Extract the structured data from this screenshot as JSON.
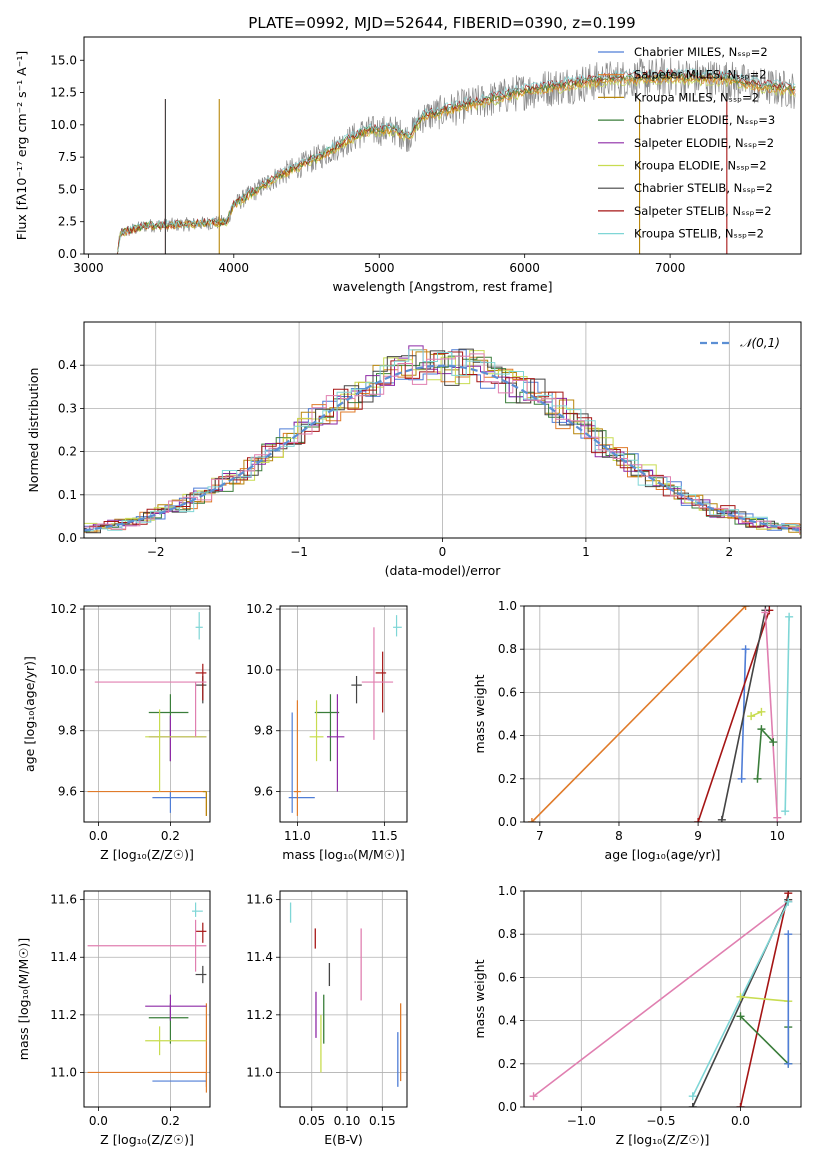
{
  "title": "PLATE=0992, MJD=52644, FIBERID=0390, z=0.199",
  "colors": {
    "chabrier_miles": "#4f7dd6",
    "salpeter_miles": "#e07b2a",
    "kroupa_miles": "#b8860b",
    "chabrier_elodie": "#3a7d3a",
    "salpeter_elodie": "#8e2aa6",
    "kroupa_elodie": "#c8dc50",
    "chabrier_stelib": "#444444",
    "salpeter_stelib": "#a51515",
    "kroupa_stelib": "#7fd6d6",
    "pink": "#e07fb0",
    "normal_curve": "#5b8fd4",
    "grid": "#b0b0b0"
  },
  "chart_data": [
    {
      "id": "spectrum",
      "type": "line",
      "xlabel": "wavelength [Angstrom, rest frame]",
      "ylabel": "Flux [fλ10⁻¹⁷ erg cm⁻² s⁻¹ A⁻¹]",
      "xlim": [
        2970,
        7900
      ],
      "ylim": [
        0,
        16.8
      ],
      "xticks": [
        3000,
        4000,
        5000,
        6000,
        7000
      ],
      "yticks": [
        0.0,
        2.5,
        5.0,
        7.5,
        10.0,
        12.5,
        15.0
      ],
      "envelope": [
        [
          3200,
          0
        ],
        [
          3220,
          1.6
        ],
        [
          3400,
          2.2
        ],
        [
          3700,
          2.3
        ],
        [
          3950,
          2.5
        ],
        [
          4000,
          3.8
        ],
        [
          4300,
          6.0
        ],
        [
          4600,
          7.6
        ],
        [
          4900,
          9.5
        ],
        [
          5100,
          9.6
        ],
        [
          5200,
          9.0
        ],
        [
          5300,
          10.6
        ],
        [
          5600,
          11.5
        ],
        [
          6000,
          12.6
        ],
        [
          6300,
          13.1
        ],
        [
          6600,
          13.5
        ],
        [
          7000,
          13.7
        ],
        [
          7400,
          13.5
        ],
        [
          7600,
          13.0
        ],
        [
          7850,
          12.7
        ]
      ],
      "legend": [
        "Chabrier MILES, Nₛₛₚ=2",
        "Salpeter MILES, Nₛₛₚ=2",
        "Kroupa MILES, Nₛₛₚ=2",
        "Chabrier ELODIE, Nₛₛₚ=3",
        "Salpeter ELODIE, Nₛₛₚ=2",
        "Kroupa ELODIE, Nₛₛₚ=2",
        "Chabrier STELIB, Nₛₛₚ=2",
        "Salpeter STELIB, Nₛₛₚ=2",
        "Kroupa STELIB, Nₛₛₚ=2"
      ],
      "legend_position": "upper right"
    },
    {
      "id": "residuals",
      "type": "histogram",
      "xlabel": "(data-model)/error",
      "ylabel": "Normed distribution",
      "xlim": [
        -2.5,
        2.5
      ],
      "ylim": [
        0,
        0.5
      ],
      "xticks": [
        -2,
        -1,
        0,
        1,
        2
      ],
      "xtick_labels": [
        "−2",
        "−1",
        "0",
        "1",
        "2"
      ],
      "yticks": [
        0.0,
        0.1,
        0.2,
        0.3,
        0.4
      ],
      "legend": [
        "𝒩(0,1)"
      ],
      "legend_position": "upper right",
      "grid": true
    },
    {
      "id": "age_vs_Z",
      "type": "scatter",
      "xlabel": "Z [log₁₀(Z/Z☉)]",
      "ylabel": "age  [log₁₀(age/yr)]",
      "xlim": [
        -0.04,
        0.31
      ],
      "ylim": [
        9.5,
        10.21
      ],
      "xticks": [
        0.0,
        0.2
      ],
      "yticks": [
        9.6,
        9.8,
        10.0,
        10.2
      ],
      "points": [
        {
          "c": "chabrier_miles",
          "x": 0.2,
          "xlo": 0.15,
          "xhi": 0.3,
          "y": 9.58,
          "ylo": 9.53,
          "yhi": 9.6
        },
        {
          "c": "salpeter_miles",
          "x": 0.3,
          "xlo": -0.03,
          "xhi": 0.3,
          "y": 9.6,
          "ylo": 9.52,
          "yhi": 9.6
        },
        {
          "c": "kroupa_miles",
          "x": 0.3,
          "xlo": 0.29,
          "xhi": 0.3,
          "y": 9.6,
          "ylo": 9.52,
          "yhi": 9.6
        },
        {
          "c": "chabrier_elodie",
          "x": 0.2,
          "xlo": 0.14,
          "xhi": 0.25,
          "y": 9.86,
          "ylo": 9.7,
          "yhi": 9.92
        },
        {
          "c": "salpeter_elodie",
          "x": 0.2,
          "xlo": 0.14,
          "xhi": 0.3,
          "y": 9.78,
          "ylo": 9.7,
          "yhi": 9.85
        },
        {
          "c": "kroupa_elodie",
          "x": 0.17,
          "xlo": 0.13,
          "xhi": 0.3,
          "y": 9.78,
          "ylo": 9.6,
          "yhi": 9.87
        },
        {
          "c": "chabrier_stelib",
          "x": 0.29,
          "xlo": 0.27,
          "xhi": 0.3,
          "y": 9.95,
          "ylo": 9.89,
          "yhi": 9.98
        },
        {
          "c": "salpeter_stelib",
          "x": 0.29,
          "xlo": 0.27,
          "xhi": 0.3,
          "y": 9.99,
          "ylo": 9.9,
          "yhi": 10.02
        },
        {
          "c": "pink",
          "x": 0.27,
          "xlo": -0.01,
          "xhi": 0.3,
          "y": 9.96,
          "ylo": 9.78,
          "yhi": 9.96
        },
        {
          "c": "kroupa_stelib",
          "x": 0.28,
          "xlo": 0.27,
          "xhi": 0.29,
          "y": 10.14,
          "ylo": 10.1,
          "yhi": 10.19
        }
      ]
    },
    {
      "id": "age_vs_mass",
      "type": "scatter",
      "xlabel": "mass [log₁₀(M/M☉)]",
      "xlim": [
        10.9,
        11.63
      ],
      "ylim": [
        9.5,
        10.21
      ],
      "xticks": [
        11.0,
        11.5
      ],
      "yticks": [
        9.6,
        9.8,
        10.0,
        10.2
      ],
      "points": [
        {
          "c": "chabrier_miles",
          "x": 10.97,
          "xlo": 10.95,
          "xhi": 11.1,
          "y": 9.58,
          "ylo": 9.53,
          "yhi": 9.86
        },
        {
          "c": "salpeter_miles",
          "x": 11.0,
          "xlo": 10.98,
          "xhi": 11.02,
          "y": 9.6,
          "ylo": 9.52,
          "yhi": 9.9
        },
        {
          "c": "chabrier_elodie",
          "x": 11.19,
          "xlo": 11.1,
          "xhi": 11.24,
          "y": 9.86,
          "ylo": 9.7,
          "yhi": 9.92
        },
        {
          "c": "salpeter_elodie",
          "x": 11.23,
          "xlo": 11.17,
          "xhi": 11.27,
          "y": 9.78,
          "ylo": 9.6,
          "yhi": 9.92
        },
        {
          "c": "kroupa_elodie",
          "x": 11.11,
          "xlo": 11.07,
          "xhi": 11.15,
          "y": 9.78,
          "ylo": 9.7,
          "yhi": 9.9
        },
        {
          "c": "chabrier_stelib",
          "x": 11.34,
          "xlo": 11.31,
          "xhi": 11.37,
          "y": 9.95,
          "ylo": 9.89,
          "yhi": 9.98
        },
        {
          "c": "salpeter_stelib",
          "x": 11.49,
          "xlo": 11.45,
          "xhi": 11.51,
          "y": 9.99,
          "ylo": 9.86,
          "yhi": 10.06
        },
        {
          "c": "pink",
          "x": 11.44,
          "xlo": 11.37,
          "xhi": 11.55,
          "y": 9.96,
          "ylo": 9.77,
          "yhi": 10.14
        },
        {
          "c": "kroupa_stelib",
          "x": 11.57,
          "xlo": 11.55,
          "xhi": 11.6,
          "y": 10.14,
          "ylo": 10.11,
          "yhi": 10.18
        }
      ]
    },
    {
      "id": "weight_vs_age",
      "type": "line",
      "xlabel": "age  [log₁₀(age/yr)]",
      "ylabel": "mass weight",
      "xlim": [
        6.8,
        10.3
      ],
      "ylim": [
        0,
        1
      ],
      "xticks": [
        7,
        8,
        9,
        10
      ],
      "yticks": [
        0.0,
        0.2,
        0.4,
        0.6,
        0.8,
        1.0
      ],
      "series": [
        {
          "c": "salpeter_miles",
          "x": [
            6.9,
            9.6
          ],
          "y": [
            0.0,
            1.0
          ]
        },
        {
          "c": "chabrier_miles",
          "x": [
            9.55,
            9.6
          ],
          "y": [
            0.2,
            0.8
          ]
        },
        {
          "c": "salpeter_stelib",
          "x": [
            9.0,
            9.9
          ],
          "y": [
            0.0,
            0.98
          ]
        },
        {
          "c": "chabrier_stelib",
          "x": [
            9.3,
            9.85
          ],
          "y": [
            0.01,
            0.98
          ]
        },
        {
          "c": "pink",
          "x": [
            9.85,
            10.0
          ],
          "y": [
            0.97,
            0.02
          ]
        },
        {
          "c": "kroupa_elodie",
          "x": [
            9.67,
            9.8
          ],
          "y": [
            0.49,
            0.51
          ]
        },
        {
          "c": "chabrier_elodie",
          "x": [
            9.75,
            9.8,
            9.95
          ],
          "y": [
            0.2,
            0.43,
            0.37
          ]
        },
        {
          "c": "kroupa_stelib",
          "x": [
            10.1,
            10.15
          ],
          "y": [
            0.05,
            0.95
          ]
        }
      ]
    },
    {
      "id": "mass_vs_Z",
      "type": "scatter",
      "xlabel": "Z [log₁₀(Z/Z☉)]",
      "ylabel": "mass [log₁₀(M/M☉)]",
      "xlim": [
        -0.04,
        0.31
      ],
      "ylim": [
        10.88,
        11.63
      ],
      "xticks": [
        0.0,
        0.2
      ],
      "yticks": [
        11.0,
        11.2,
        11.4,
        11.6
      ],
      "points": [
        {
          "c": "chabrier_miles",
          "x": 0.3,
          "xlo": 0.15,
          "xhi": 0.3,
          "y": 10.97,
          "ylo": 10.95,
          "yhi": 11.0
        },
        {
          "c": "salpeter_miles",
          "x": 0.3,
          "xlo": -0.03,
          "xhi": 0.3,
          "y": 11.0,
          "ylo": 10.93,
          "yhi": 11.24
        },
        {
          "c": "chabrier_elodie",
          "x": 0.2,
          "xlo": 0.14,
          "xhi": 0.25,
          "y": 11.19,
          "ylo": 11.1,
          "yhi": 11.24
        },
        {
          "c": "salpeter_elodie",
          "x": 0.2,
          "xlo": 0.13,
          "xhi": 0.3,
          "y": 11.23,
          "ylo": 11.18,
          "yhi": 11.27
        },
        {
          "c": "kroupa_elodie",
          "x": 0.17,
          "xlo": 0.13,
          "xhi": 0.3,
          "y": 11.11,
          "ylo": 11.06,
          "yhi": 11.16
        },
        {
          "c": "chabrier_stelib",
          "x": 0.29,
          "xlo": 0.27,
          "xhi": 0.3,
          "y": 11.34,
          "ylo": 11.31,
          "yhi": 11.37
        },
        {
          "c": "salpeter_stelib",
          "x": 0.29,
          "xlo": 0.27,
          "xhi": 0.3,
          "y": 11.49,
          "ylo": 11.45,
          "yhi": 11.52
        },
        {
          "c": "pink",
          "x": 0.27,
          "xlo": -0.03,
          "xhi": 0.3,
          "y": 11.44,
          "ylo": 11.35,
          "yhi": 11.53
        },
        {
          "c": "kroupa_stelib",
          "x": 0.27,
          "xlo": 0.26,
          "xhi": 0.29,
          "y": 11.56,
          "ylo": 11.54,
          "yhi": 11.59
        }
      ]
    },
    {
      "id": "mass_vs_ebv",
      "type": "scatter",
      "xlabel": "E(B-V)",
      "xlim": [
        0.005,
        0.185
      ],
      "ylim": [
        10.88,
        11.63
      ],
      "xticks": [
        0.05,
        0.1,
        0.15
      ],
      "xtick_labels": [
        "0.05",
        "0.10",
        "0.15"
      ],
      "yticks": [
        11.0,
        11.2,
        11.4,
        11.6
      ],
      "segments": [
        {
          "c": "kroupa_stelib",
          "x": 0.02,
          "ylo": 11.52,
          "yhi": 11.59
        },
        {
          "c": "salpeter_stelib",
          "x": 0.055,
          "ylo": 11.43,
          "yhi": 11.5
        },
        {
          "c": "salpeter_elodie",
          "x": 0.056,
          "ylo": 11.12,
          "yhi": 11.28
        },
        {
          "c": "kroupa_elodie",
          "x": 0.063,
          "ylo": 11.0,
          "yhi": 11.2
        },
        {
          "c": "chabrier_elodie",
          "x": 0.067,
          "ylo": 11.1,
          "yhi": 11.27
        },
        {
          "c": "chabrier_stelib",
          "x": 0.075,
          "ylo": 11.3,
          "yhi": 11.38
        },
        {
          "c": "pink",
          "x": 0.12,
          "ylo": 11.25,
          "yhi": 11.5
        },
        {
          "c": "chabrier_miles",
          "x": 0.172,
          "ylo": 10.95,
          "yhi": 11.14
        },
        {
          "c": "salpeter_miles",
          "x": 0.176,
          "ylo": 10.97,
          "yhi": 11.24
        }
      ]
    },
    {
      "id": "weight_vs_Z",
      "type": "line",
      "xlabel": "Z [log₁₀(Z/Z☉)]",
      "ylabel": "mass weight",
      "xlim": [
        -1.36,
        0.38
      ],
      "ylim": [
        0,
        1
      ],
      "xticks": [
        -1.0,
        -0.5,
        0.0
      ],
      "xtick_labels": [
        "−1.0",
        "−0.5",
        "0.0"
      ],
      "yticks": [
        0.0,
        0.2,
        0.4,
        0.6,
        0.8,
        1.0
      ],
      "series": [
        {
          "c": "pink",
          "x": [
            -1.3,
            0.3
          ],
          "y": [
            0.05,
            0.95
          ]
        },
        {
          "c": "salpeter_stelib",
          "x": [
            0.0,
            0.3
          ],
          "y": [
            0.0,
            0.99
          ]
        },
        {
          "c": "chabrier_stelib",
          "x": [
            -0.3,
            0.3
          ],
          "y": [
            0.0,
            0.96
          ]
        },
        {
          "c": "kroupa_stelib",
          "x": [
            -0.3,
            0.3
          ],
          "y": [
            0.05,
            0.95
          ]
        },
        {
          "c": "kroupa_elodie",
          "x": [
            0.0,
            0.3
          ],
          "y": [
            0.51,
            0.49
          ]
        },
        {
          "c": "chabrier_elodie",
          "x": [
            0.0,
            0.3,
            0.3
          ],
          "y": [
            0.42,
            0.2,
            0.37
          ]
        },
        {
          "c": "chabrier_miles",
          "x": [
            0.3,
            0.3
          ],
          "y": [
            0.2,
            0.8
          ]
        }
      ]
    }
  ]
}
